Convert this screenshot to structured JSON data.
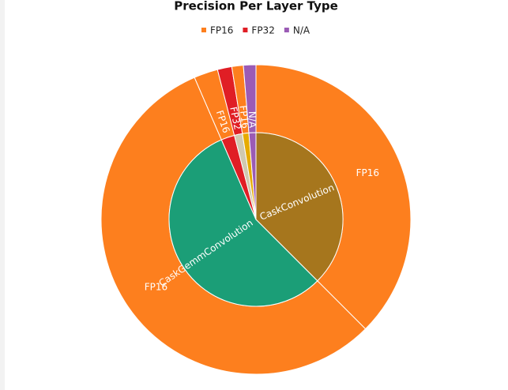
{
  "chart_data": {
    "type": "sunburst",
    "title": "Precision Per Layer Type",
    "legend": [
      {
        "name": "FP16",
        "color": "#fd7f1e"
      },
      {
        "name": "FP32",
        "color": "#e01e25"
      },
      {
        "name": "N/A",
        "color": "#9b5bb5"
      }
    ],
    "inner": {
      "categories": [
        "CaskConvolution",
        "CaskGemmConvolution",
        null,
        null,
        null,
        null
      ],
      "values": [
        37.5,
        56,
        2.5,
        1.5,
        1.2,
        1.3
      ],
      "colors": [
        "#a6761d",
        "#1b9e77",
        "#e01e25",
        "#d0c9b0",
        "#e6ab02",
        "#9b5bb5"
      ]
    },
    "outer": {
      "categories": [
        "FP16",
        "FP16",
        "FP16",
        "FP32",
        "FP16",
        "N/A"
      ],
      "values": [
        37.5,
        56,
        2.5,
        1.5,
        1.2,
        1.3
      ],
      "colors": [
        "#fd7f1e",
        "#fd7f1e",
        "#fd7f1e",
        "#e01e25",
        "#fd7f1e",
        "#9b5bb5"
      ]
    }
  }
}
